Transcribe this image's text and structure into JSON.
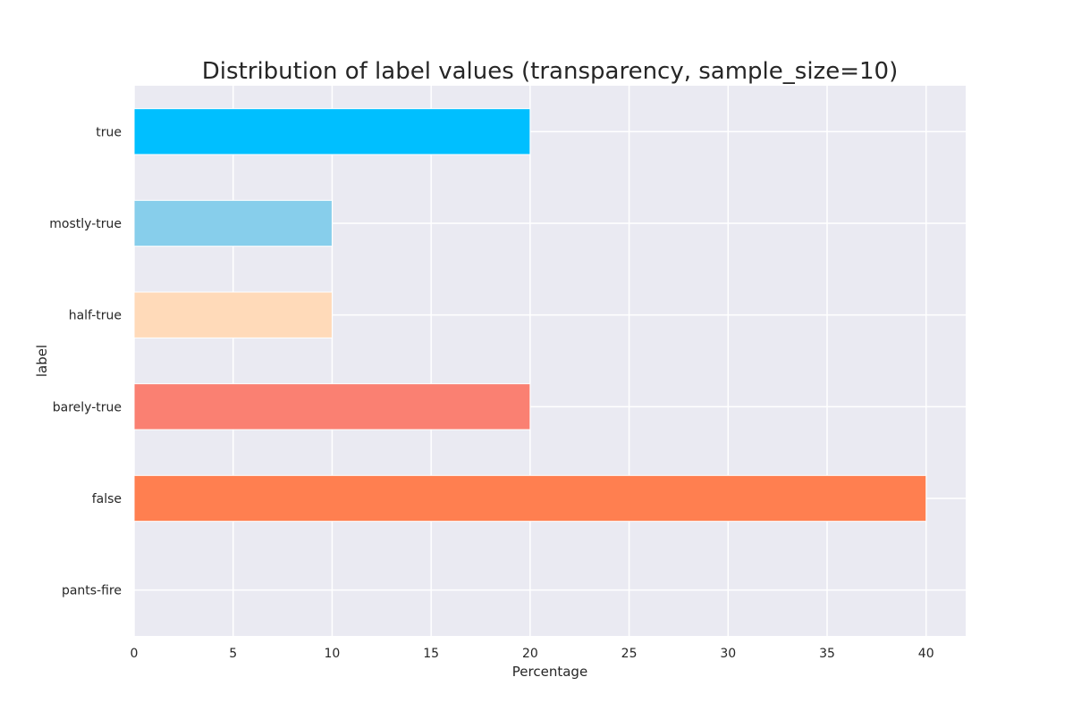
{
  "chart_data": {
    "type": "bar",
    "orientation": "horizontal",
    "title": "Distribution of label values (transparency, sample_size=10)",
    "xlabel": "Percentage",
    "ylabel": "label",
    "categories": [
      "pants-fire",
      "false",
      "barely-true",
      "half-true",
      "mostly-true",
      "true"
    ],
    "values": [
      0,
      40,
      20,
      10,
      10,
      20
    ],
    "colors": [
      "#ff4500",
      "#ff7f50",
      "#fa8072",
      "#ffdab9",
      "#87ceeb",
      "#00bfff"
    ],
    "xlim": [
      0,
      42
    ],
    "xticks": [
      0,
      5,
      10,
      15,
      20,
      25,
      30,
      35,
      40
    ],
    "grid": true,
    "background": "#eaeaf2",
    "grid_color": "#ffffff"
  }
}
